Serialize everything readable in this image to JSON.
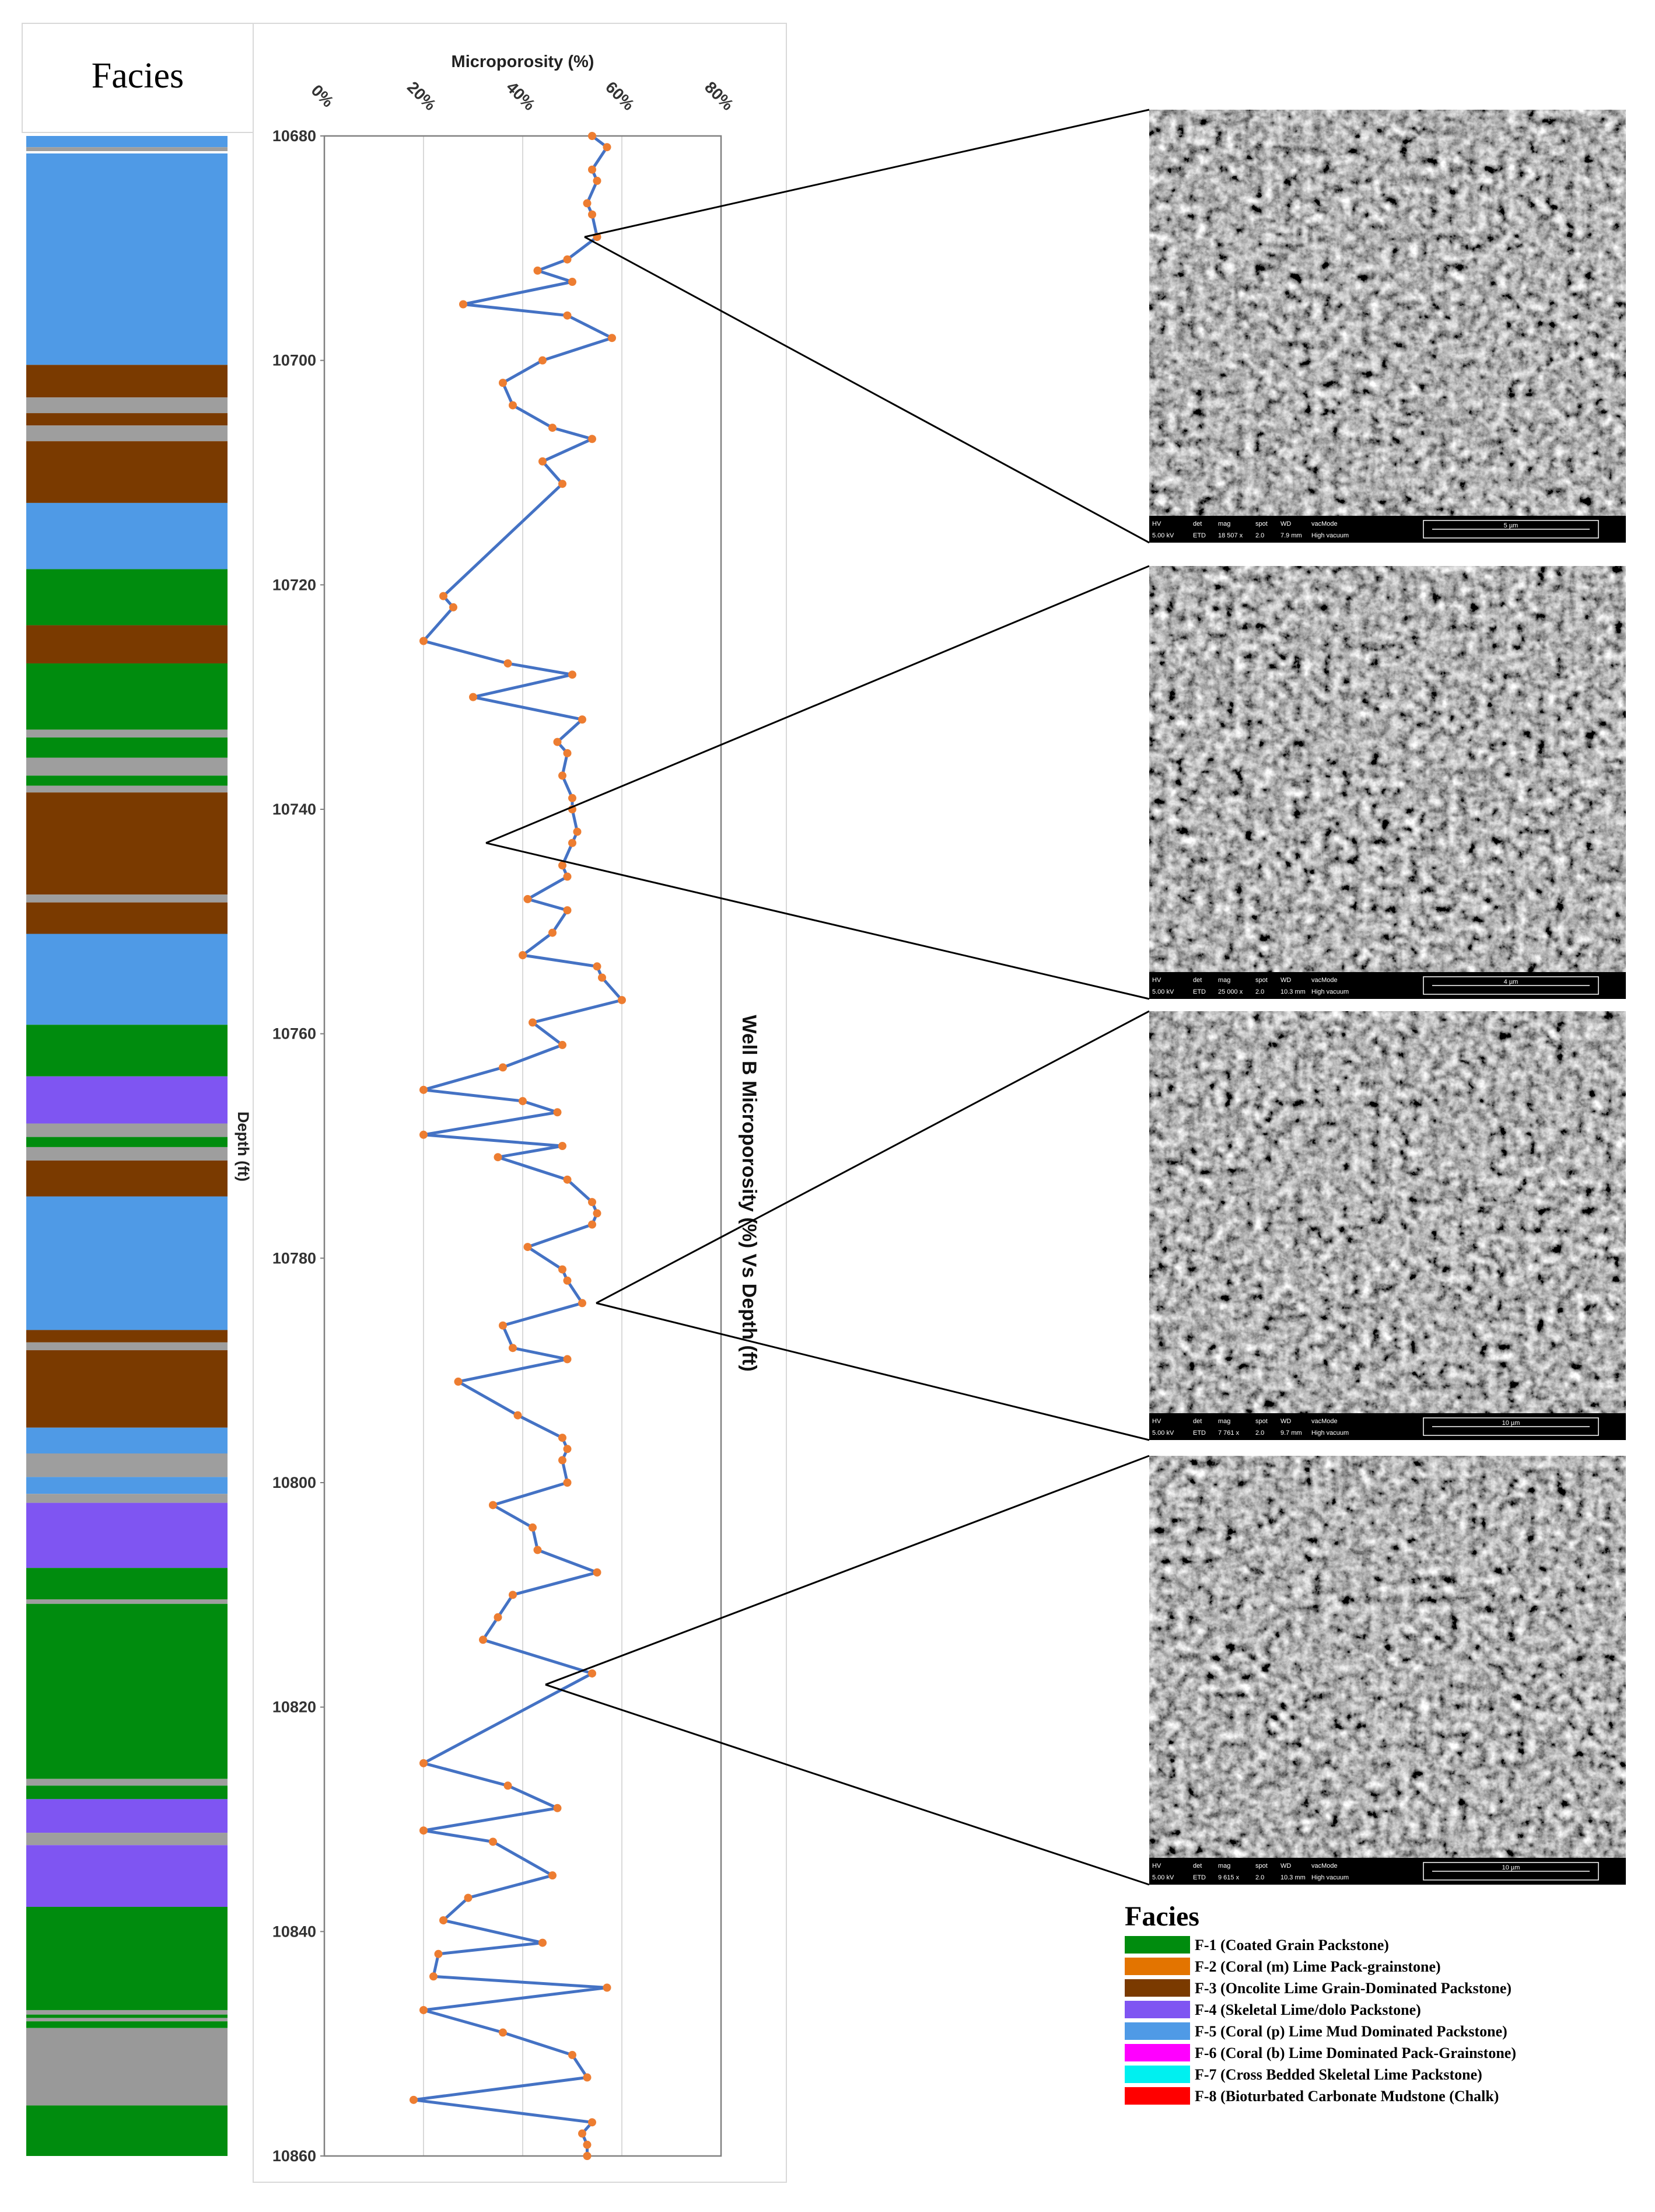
{
  "chart_data": {
    "type": "line",
    "title": "Microporosity (%)",
    "xlabel": "Microporosity (%)",
    "ylabel": "Depth (ft)",
    "right_title": "Well B Microporosity (%) Vs Depth (ft)",
    "x_ticks": [
      "0%",
      "20%",
      "40%",
      "60%",
      "80%"
    ],
    "y_ticks": [
      "10680",
      "10700",
      "10720",
      "10740",
      "10760",
      "10780",
      "10800",
      "10820",
      "10840",
      "10860"
    ],
    "xlim": [
      0,
      80
    ],
    "ylim": [
      10680,
      10860
    ],
    "grid": "vertical",
    "line_color": "#4472c4",
    "marker_color": "#ed7d31",
    "series": [
      {
        "points": [
          [
            54,
            10680
          ],
          [
            57,
            10681
          ],
          [
            54,
            10683
          ],
          [
            55,
            10684
          ],
          [
            53,
            10686
          ],
          [
            54,
            10687
          ],
          [
            55,
            10689
          ],
          [
            49,
            10691
          ],
          [
            43,
            10692
          ],
          [
            50,
            10693
          ],
          [
            28,
            10695
          ],
          [
            49,
            10696
          ],
          [
            58,
            10698
          ],
          [
            44,
            10700
          ],
          [
            36,
            10702
          ],
          [
            38,
            10704
          ],
          [
            46,
            10706
          ],
          [
            54,
            10707
          ],
          [
            44,
            10709
          ],
          [
            48,
            10711
          ],
          [
            24,
            10721
          ],
          [
            26,
            10722
          ],
          [
            20,
            10725
          ],
          [
            37,
            10727
          ],
          [
            50,
            10728
          ],
          [
            30,
            10730
          ],
          [
            52,
            10732
          ],
          [
            47,
            10734
          ],
          [
            49,
            10735
          ],
          [
            48,
            10737
          ],
          [
            50,
            10739
          ],
          [
            50,
            10740
          ],
          [
            51,
            10742
          ],
          [
            50,
            10743
          ],
          [
            48,
            10745
          ],
          [
            49,
            10746
          ],
          [
            41,
            10748
          ],
          [
            49,
            10749
          ],
          [
            46,
            10751
          ],
          [
            40,
            10753
          ],
          [
            55,
            10754
          ],
          [
            56,
            10755
          ],
          [
            60,
            10757
          ],
          [
            42,
            10759
          ],
          [
            48,
            10761
          ],
          [
            36,
            10763
          ],
          [
            20,
            10765
          ],
          [
            40,
            10766
          ],
          [
            47,
            10767
          ],
          [
            20,
            10769
          ],
          [
            48,
            10770
          ],
          [
            35,
            10771
          ],
          [
            49,
            10773
          ],
          [
            54,
            10775
          ],
          [
            55,
            10776
          ],
          [
            54,
            10777
          ],
          [
            41,
            10779
          ],
          [
            48,
            10781
          ],
          [
            49,
            10782
          ],
          [
            52,
            10784
          ],
          [
            36,
            10786
          ],
          [
            38,
            10788
          ],
          [
            49,
            10789
          ],
          [
            27,
            10791
          ],
          [
            39,
            10794
          ],
          [
            48,
            10796
          ],
          [
            49,
            10797
          ],
          [
            48,
            10798
          ],
          [
            49,
            10800
          ],
          [
            34,
            10802
          ],
          [
            42,
            10804
          ],
          [
            43,
            10806
          ],
          [
            55,
            10808
          ],
          [
            38,
            10810
          ],
          [
            35,
            10812
          ],
          [
            32,
            10814
          ],
          [
            54,
            10817
          ],
          [
            20,
            10825
          ],
          [
            37,
            10827
          ],
          [
            47,
            10829
          ],
          [
            20,
            10831
          ],
          [
            34,
            10832
          ],
          [
            46,
            10835
          ],
          [
            29,
            10837
          ],
          [
            24,
            10839
          ],
          [
            44,
            10841
          ],
          [
            23,
            10842
          ],
          [
            22,
            10844
          ],
          [
            57,
            10845
          ],
          [
            20,
            10847
          ],
          [
            36,
            10849
          ],
          [
            50,
            10851
          ],
          [
            53,
            10853
          ],
          [
            18,
            10855
          ],
          [
            54,
            10857
          ],
          [
            52,
            10858
          ],
          [
            53,
            10859
          ],
          [
            53,
            10860
          ]
        ]
      }
    ]
  },
  "facies_column": {
    "header": "Facies",
    "colors": {
      "F-1": "#008c0e",
      "F-3": "#7a3a00",
      "F-4": "#7f55f2",
      "F-5": "#4f9ae6",
      "sep": "#9e9e9e"
    },
    "intervals": [
      [
        "F-5",
        10680,
        10681
      ],
      [
        "sep",
        10681,
        10681.4
      ],
      [
        "F-5",
        10681.4,
        10700.4
      ],
      [
        "F-3",
        10700.4,
        10703.3
      ],
      [
        "sep",
        10703.3,
        10704.7
      ],
      [
        "F-3",
        10704.7,
        10705.8
      ],
      [
        "sep",
        10705.8,
        10707.2
      ],
      [
        "F-3",
        10707.2,
        10712.7
      ],
      [
        "F-5",
        10712.7,
        10718.6
      ],
      [
        "F-1",
        10718.6,
        10723.6
      ],
      [
        "F-3",
        10723.6,
        10727
      ],
      [
        "F-1",
        10727,
        10732.9
      ],
      [
        "sep",
        10732.9,
        10733.6
      ],
      [
        "F-1",
        10733.6,
        10735.4
      ],
      [
        "sep",
        10735.4,
        10737
      ],
      [
        "F-1",
        10737,
        10737.9
      ],
      [
        "sep",
        10737.9,
        10738.5
      ],
      [
        "F-3",
        10738.5,
        10747.6
      ],
      [
        "sep",
        10747.6,
        10748.3
      ],
      [
        "F-3",
        10748.3,
        10751.1
      ],
      [
        "F-5",
        10751.1,
        10759.2
      ],
      [
        "F-1",
        10759.2,
        10763.8
      ],
      [
        "F-4",
        10763.8,
        10768
      ],
      [
        "sep",
        10768,
        10769.2
      ],
      [
        "F-1",
        10769.2,
        10770.1
      ],
      [
        "sep",
        10770.1,
        10771.3
      ],
      [
        "F-3",
        10771.3,
        10774.5
      ],
      [
        "F-5",
        10774.5,
        10786.4
      ],
      [
        "F-3",
        10786.4,
        10787.5
      ],
      [
        "sep",
        10787.5,
        10788.2
      ],
      [
        "F-3",
        10788.2,
        10795.1
      ],
      [
        "F-5",
        10795.1,
        10797.4
      ],
      [
        "sep",
        10797.4,
        10799.5
      ],
      [
        "F-5",
        10799.5,
        10801
      ],
      [
        "sep",
        10801,
        10801.8
      ],
      [
        "F-4",
        10801.8,
        10807.6
      ],
      [
        "F-1",
        10807.6,
        10810.4
      ],
      [
        "sep",
        10810.4,
        10810.8
      ],
      [
        "F-1",
        10810.8,
        10826.4
      ],
      [
        "sep",
        10826.4,
        10827
      ],
      [
        "F-1",
        10827,
        10828.2
      ],
      [
        "F-4",
        10828.2,
        10831.2
      ],
      [
        "sep",
        10831.2,
        10832.3
      ],
      [
        "F-4",
        10832.3,
        10837.8
      ],
      [
        "F-1",
        10837.8,
        10847
      ],
      [
        "sep",
        10847,
        10847.4
      ],
      [
        "F-1",
        10847.4,
        10847.7
      ],
      [
        "sep",
        10847.7,
        10848
      ],
      [
        "F-1",
        10848,
        10848.6
      ],
      [
        "F-2",
        10848.6,
        10855.5
      ],
      [
        "F-1",
        10855.5,
        10860
      ]
    ]
  },
  "sem_images": [
    {
      "hv": "5.00 kV",
      "det": "ETD",
      "mag": "18 507 x",
      "spot": "2.0",
      "wd": "7.9 mm",
      "mode": "High vacuum",
      "scale": "5 µm"
    },
    {
      "hv": "5.00 kV",
      "det": "ETD",
      "mag": "25 000 x",
      "spot": "2.0",
      "wd": "10.3 mm",
      "mode": "High vacuum",
      "scale": "4 µm"
    },
    {
      "hv": "5.00 kV",
      "det": "ETD",
      "mag": "7 761 x",
      "spot": "2.0",
      "wd": "9.7 mm",
      "mode": "High vacuum",
      "scale": "10 µm"
    },
    {
      "hv": "5.00 kV",
      "det": "ETD",
      "mag": "9 615 x",
      "spot": "2.0",
      "wd": "10.3 mm",
      "mode": "High vacuum",
      "scale": "10 µm"
    }
  ],
  "sem_header": {
    "hv": "HV",
    "det": "det",
    "mag": "mag",
    "spot": "spot",
    "wd": "WD",
    "mode": "vacMode"
  },
  "legend": {
    "title": "Facies",
    "items": [
      {
        "label": "F-1 (Coated Grain Packstone)",
        "color": "#008c0e"
      },
      {
        "label": "F-2 (Coral (m) Lime Pack-grainstone)",
        "color": "#e37400"
      },
      {
        "label": "F-3 (Oncolite Lime Grain-Dominated Packstone)",
        "color": "#7a3a00"
      },
      {
        "label": "F-4 (Skeletal Lime/dolo Packstone)",
        "color": "#7f55f2"
      },
      {
        "label": "F-5 (Coral (p) Lime Mud Dominated Packstone)",
        "color": "#4f9ae6"
      },
      {
        "label": "F-6 (Coral (b) Lime Dominated Pack-Grainstone)",
        "color": "#ff00ff"
      },
      {
        "label": "F-7 (Cross Bedded Skeletal Lime Packstone)",
        "color": "#00f0f0"
      },
      {
        "label": "F-8 (Bioturbated Carbonate Mudstone (Chalk)",
        "color": "#ff0000"
      }
    ]
  }
}
